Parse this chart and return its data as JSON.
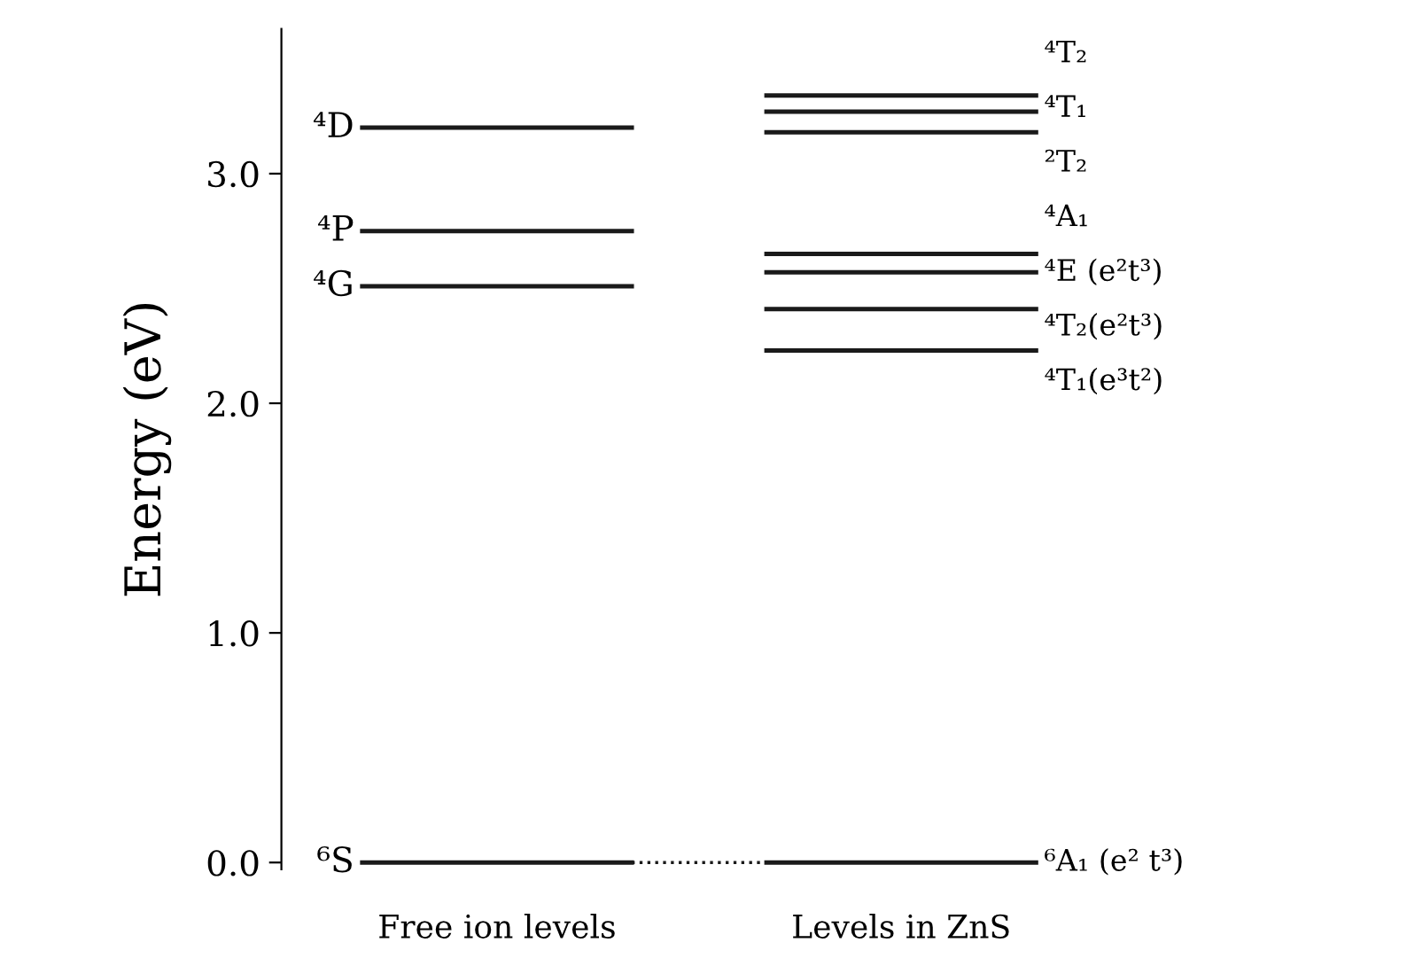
{
  "chart_data": {
    "type": "line",
    "ylabel": "Energy (eV)",
    "categories": [
      null,
      null,
      "Free ion levels",
      null,
      null,
      null,
      null,
      null,
      "Levels in ZnS",
      null,
      null
    ],
    "ylim": [
      -0.03,
      3.63
    ],
    "yticks": [
      {
        "value": 0,
        "label": "0.0"
      },
      {
        "value": 1,
        "label": "1.0"
      },
      {
        "value": 2,
        "label": "2.0"
      },
      {
        "value": 3,
        "label": "3.0"
      }
    ],
    "marker": "none",
    "grid": false,
    "legend": false,
    "series": [
      {
        "name": "⁴D",
        "color": "#1a1a1a",
        "values": [
          3.2,
          3.2,
          3.2,
          3.2,
          3.2,
          null,
          null,
          null,
          null,
          null,
          null
        ]
      },
      {
        "name": "⁴P",
        "color": "#1a1a1a",
        "values": [
          2.75,
          2.75,
          2.75,
          2.75,
          2.75,
          null,
          null,
          null,
          null,
          null,
          null
        ]
      },
      {
        "name": "⁴G",
        "color": "#1a1a1a",
        "values": [
          2.51,
          2.51,
          2.51,
          2.51,
          2.51,
          null,
          null,
          null,
          null,
          null,
          null
        ]
      },
      {
        "name": "⁶S",
        "color": "#1a1a1a",
        "values": [
          0,
          0,
          0,
          0,
          0,
          null,
          null,
          null,
          null,
          null,
          null
        ]
      },
      {
        "name": "⁴T₂",
        "color": "#1a1a1a",
        "values": [
          null,
          null,
          null,
          null,
          null,
          null,
          3.34,
          3.34,
          3.34,
          3.34,
          3.34
        ]
      },
      {
        "name": "⁴T₁",
        "color": "#1a1a1a",
        "values": [
          null,
          null,
          null,
          null,
          null,
          null,
          3.27,
          3.27,
          3.27,
          3.27,
          3.27
        ]
      },
      {
        "name": "²T₂",
        "color": "#1a1a1a",
        "values": [
          null,
          null,
          null,
          null,
          null,
          null,
          3.18,
          3.18,
          3.18,
          3.18,
          3.18
        ]
      },
      {
        "name": "⁴A₁",
        "color": "#1a1a1a",
        "values": [
          null,
          null,
          null,
          null,
          null,
          null,
          2.65,
          2.65,
          2.65,
          2.65,
          2.65
        ]
      },
      {
        "name": "⁴E (e²t³)",
        "color": "#1a1a1a",
        "values": [
          null,
          null,
          null,
          null,
          null,
          null,
          2.57,
          2.57,
          2.57,
          2.57,
          2.57
        ]
      },
      {
        "name": "⁴T₂(e²t³)",
        "color": "#1a1a1a",
        "values": [
          null,
          null,
          null,
          null,
          null,
          null,
          2.41,
          2.41,
          2.41,
          2.41,
          2.41
        ]
      },
      {
        "name": "⁴T₁(e³t²)",
        "color": "#1a1a1a",
        "values": [
          null,
          null,
          null,
          null,
          null,
          null,
          2.23,
          2.23,
          2.23,
          2.23,
          2.23
        ]
      },
      {
        "name": "⁶A₁ (e² t³)",
        "color": "#1a1a1a",
        "values": [
          null,
          null,
          null,
          null,
          null,
          null,
          0,
          0,
          0,
          0,
          0
        ]
      },
      {
        "color": "#1a1a1a",
        "line_style": "dotted",
        "values": [
          null,
          null,
          null,
          null,
          0,
          0,
          0,
          null,
          null,
          null,
          null
        ]
      }
    ]
  }
}
